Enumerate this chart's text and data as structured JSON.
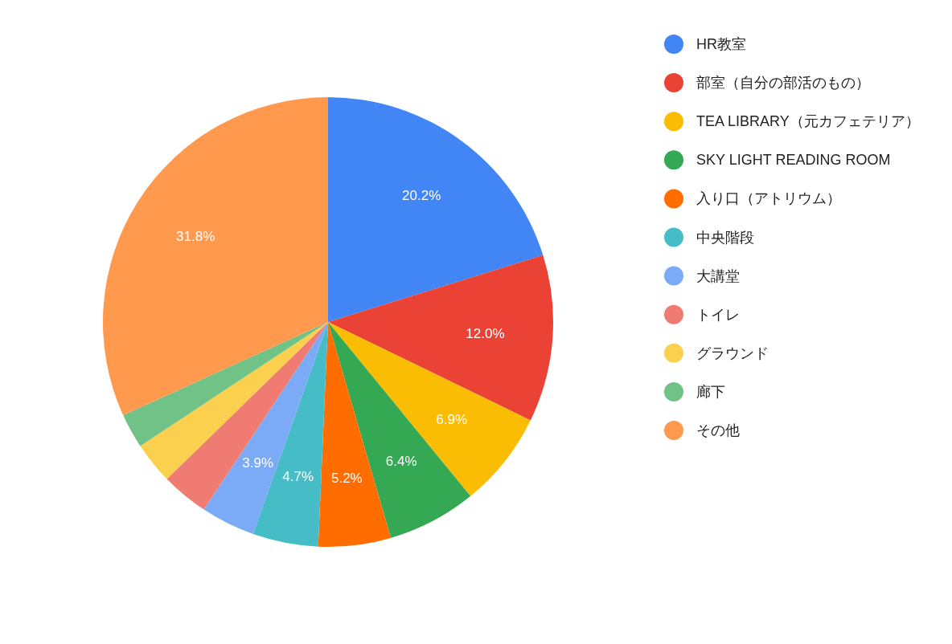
{
  "chart_data": {
    "type": "pie",
    "categories": [
      "HR教室",
      "部室（自分の部活のもの）",
      "TEA LIBRARY（元カフェテリア）",
      "SKY LIGHT READING ROOM",
      "入り口（アトリウム）",
      "中央階段",
      "大講堂",
      "トイレ",
      "グラウンド",
      "廊下",
      "その他"
    ],
    "values": [
      20.2,
      12.0,
      6.9,
      6.4,
      5.2,
      4.7,
      3.9,
      3.4,
      3.0,
      2.5,
      31.8
    ],
    "colors": [
      "#4285f4",
      "#ea4335",
      "#fbbc04",
      "#34a853",
      "#ff6d01",
      "#46bdc6",
      "#7baaf7",
      "#f07b72",
      "#fcd04f",
      "#71c287",
      "#ff994d"
    ],
    "value_labels": [
      "20.2%",
      "12.0%",
      "6.9%",
      "6.4%",
      "5.2%",
      "4.7%",
      "3.9%",
      null,
      null,
      null,
      "31.8%"
    ],
    "legend": "right"
  }
}
